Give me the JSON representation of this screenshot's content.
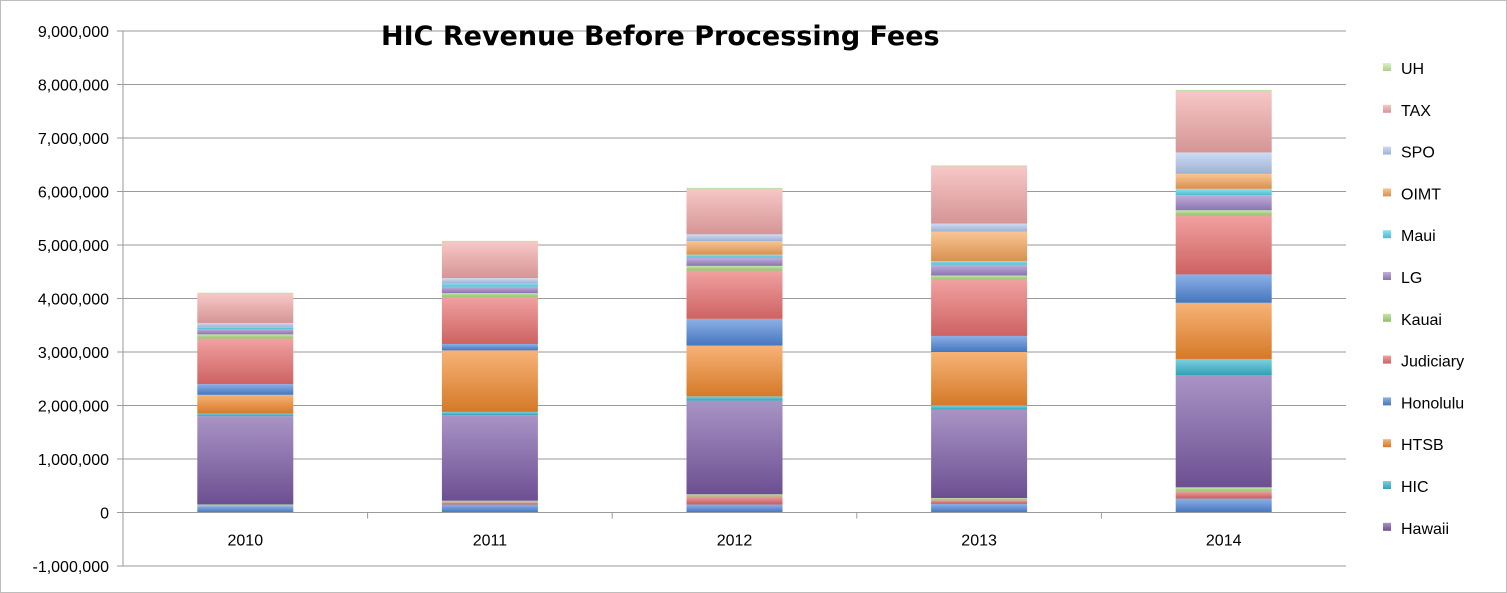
{
  "chart_data": {
    "type": "bar",
    "stacked": true,
    "title": "HIC Revenue Before Processing Fees",
    "categories": [
      "2010",
      "2011",
      "2012",
      "2013",
      "2014"
    ],
    "ylim": [
      -1000000,
      9000000
    ],
    "yticks": [
      -1000000,
      0,
      1000000,
      2000000,
      3000000,
      4000000,
      5000000,
      6000000,
      7000000,
      8000000,
      9000000
    ],
    "ytick_labels": [
      "-1,000,000",
      "0",
      "1,000,000",
      "2,000,000",
      "3,000,000",
      "4,000,000",
      "5,000,000",
      "6,000,000",
      "7,000,000",
      "8,000,000",
      "9,000,000"
    ],
    "grid": true,
    "legend_position": "right",
    "stack_order": [
      "Honolulu",
      "Judiciary",
      "Kauai",
      "Hawaii",
      "HIC",
      "HTSB",
      "Honolulu",
      "LG",
      "Judiciary",
      "Kauai",
      "Maui",
      "OIMT",
      "SPO",
      "TAX",
      "UH"
    ],
    "series": [
      {
        "name": "UH",
        "color": "#c5ec9f",
        "values": [
          20000,
          20000,
          20000,
          20000,
          20000
        ]
      },
      {
        "name": "TAX",
        "color": "#f2a9a9",
        "values": [
          550000,
          680000,
          850000,
          1070000,
          1150000
        ]
      },
      {
        "name": "SPO",
        "color": "#b2c9ef",
        "values": [
          70000,
          100000,
          130000,
          150000,
          400000
        ]
      },
      {
        "name": "OIMT",
        "color": "#f5a55b",
        "values": [
          0,
          0,
          250000,
          550000,
          280000
        ]
      },
      {
        "name": "Maui",
        "color": "#58d3eb",
        "values": [
          40000,
          60000,
          60000,
          70000,
          120000
        ]
      },
      {
        "name": "LG",
        "color": "#9e84c8",
        "values": [
          100000,
          120000,
          150000,
          200000,
          280000
        ]
      },
      {
        "name": "Kauai",
        "color": "#a6d97a",
        "values": [
          80000,
          70000,
          90000,
          80000,
          100000
        ]
      },
      {
        "name": "Judiciary",
        "color": "#ea6f6f",
        "values": [
          850000,
          880000,
          900000,
          1050000,
          1100000
        ]
      },
      {
        "name": "Honolulu",
        "color": "#4e86d8",
        "values": [
          200000,
          120000,
          500000,
          300000,
          530000
        ]
      },
      {
        "name": "HTSB",
        "color": "#f28a2e",
        "values": [
          350000,
          1150000,
          950000,
          1000000,
          1050000
        ]
      },
      {
        "name": "HIC",
        "color": "#3ab6cf",
        "values": [
          50000,
          60000,
          80000,
          80000,
          300000
        ]
      },
      {
        "name": "Hawaii",
        "color": "#7b5aa6",
        "values": [
          1650000,
          1600000,
          1750000,
          1650000,
          2100000
        ]
      }
    ],
    "base_segments": [
      {
        "name": "Honolulu",
        "color": "#4e86d8",
        "values": [
          120000,
          150000,
          150000,
          160000,
          260000
        ]
      },
      {
        "name": "Judiciary",
        "color": "#e06a6a",
        "values": [
          0,
          40000,
          150000,
          70000,
          130000
        ]
      },
      {
        "name": "Kauai",
        "color": "#a6d97a",
        "values": [
          30000,
          30000,
          40000,
          40000,
          80000
        ]
      }
    ],
    "legend_order": [
      "UH",
      "TAX",
      "SPO",
      "OIMT",
      "Maui",
      "LG",
      "Kauai",
      "Judiciary",
      "Honolulu",
      "HTSB",
      "HIC",
      "Hawaii"
    ]
  }
}
